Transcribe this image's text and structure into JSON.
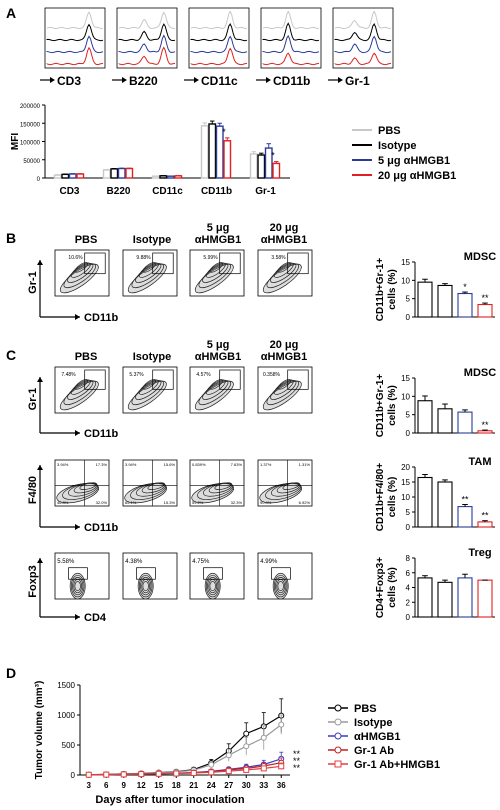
{
  "panel_labels": {
    "a": "A",
    "b": "B",
    "c": "C",
    "d": "D"
  },
  "colors": {
    "pbs": "#c8c8c8",
    "isotype": "#000000",
    "ab5": "#2a3b9a",
    "ab20": "#e02020"
  },
  "panel_a": {
    "histogram_markers": [
      "CD3",
      "B220",
      "CD11c",
      "CD11b",
      "Gr-1"
    ],
    "legend": [
      "PBS",
      "Isotype",
      "5 μg αHMGB1",
      "20 μg αHMGB1"
    ]
  },
  "panel_b": {
    "columns": [
      "PBS",
      "Isotype",
      "5 μg αHMGB1",
      "20 μg αHMGB1"
    ],
    "gate_values": [
      "10.6%",
      "9.88%",
      "5.99%",
      "3.58%"
    ],
    "y_axis": "Gr-1",
    "x_axis": "CD11b"
  },
  "panel_c": {
    "columns": [
      "PBS",
      "Isotype",
      "5 μg αHMGB1",
      "20 μg αHMGB1"
    ],
    "row1": {
      "gate_values": [
        "7.48%",
        "5.37%",
        "4.57%",
        "0.358%"
      ],
      "y_axis": "Gr-1",
      "x_axis": "CD11b"
    },
    "row2": {
      "quadrants": [
        [
          "3.94%",
          "17.3%",
          "46.8%",
          "32.0%"
        ],
        [
          "3.94%",
          "15.6%",
          "65.1%",
          "15.3%"
        ],
        [
          "0.839%",
          "7.63%",
          "59.2%",
          "32.3%"
        ],
        [
          "1.37%",
          "1.31%",
          "90.4%",
          "6.92%"
        ]
      ],
      "y_axis": "F4/80",
      "x_axis": "CD11b"
    },
    "row3": {
      "gate_values": [
        "5.58%",
        "4.38%",
        "4.75%",
        "4.99%"
      ],
      "y_axis": "Foxp3",
      "x_axis": "CD4"
    }
  },
  "chart_data": [
    {
      "type": "bar",
      "panel": "A",
      "categories": [
        "CD3",
        "B220",
        "CD11c",
        "CD11b",
        "Gr-1"
      ],
      "series": [
        {
          "name": "PBS",
          "values": [
            8000,
            22000,
            5000,
            143000,
            66000
          ]
        },
        {
          "name": "Isotype",
          "values": [
            10000,
            25000,
            6000,
            148000,
            63000
          ]
        },
        {
          "name": "5 μg αHMGB1",
          "values": [
            11000,
            26000,
            5000,
            142000,
            82000
          ]
        },
        {
          "name": "20 μg αHMGB1",
          "values": [
            11000,
            26000,
            6000,
            102000,
            40000
          ]
        }
      ],
      "errors": [
        [
          1000,
          1000,
          500,
          8000,
          6000
        ],
        [
          1000,
          1000,
          500,
          8000,
          5000
        ],
        [
          1000,
          1000,
          500,
          8000,
          12000
        ],
        [
          1000,
          1000,
          500,
          8000,
          5000
        ]
      ],
      "significance": [
        "",
        "",
        "",
        "*",
        "*"
      ],
      "ylabel": "MFI",
      "ylim": [
        0,
        200000
      ],
      "yticks": [
        "0",
        "50000",
        "100000",
        "150000",
        "200000"
      ]
    },
    {
      "type": "bar",
      "panel": "B",
      "title": "MDSC",
      "categories": [
        "PBS",
        "Isotype",
        "5 μg αHMGB1",
        "20 μg αHMGB1"
      ],
      "values": [
        9.5,
        8.6,
        6.4,
        3.4
      ],
      "errors": [
        0.8,
        0.5,
        0.4,
        0.4
      ],
      "significance": [
        "",
        "",
        "*",
        "**"
      ],
      "ylabel": "CD11b+Gr-1+ cells (%)",
      "ylim": [
        0,
        15
      ],
      "yticks": [
        "0",
        "5",
        "10",
        "15"
      ]
    },
    {
      "type": "bar",
      "panel": "C",
      "title": "MDSC",
      "categories": [
        "PBS",
        "Isotype",
        "5 μg αHMGB1",
        "20 μg αHMGB1"
      ],
      "values": [
        8.8,
        6.6,
        5.7,
        0.6
      ],
      "errors": [
        1.3,
        1.3,
        0.6,
        0.2
      ],
      "significance": [
        "",
        "",
        "",
        "**"
      ],
      "ylabel": "CD11b+Gr-1+ cells (%)",
      "ylim": [
        0,
        15
      ],
      "yticks": [
        "0",
        "5",
        "10",
        "15"
      ]
    },
    {
      "type": "bar",
      "panel": "C",
      "title": "TAM",
      "categories": [
        "PBS",
        "Isotype",
        "5 μg αHMGB1",
        "20 μg αHMGB1"
      ],
      "values": [
        16.5,
        15.0,
        6.8,
        1.7
      ],
      "errors": [
        1.0,
        0.7,
        0.7,
        0.4
      ],
      "significance": [
        "",
        "",
        "**",
        "**"
      ],
      "ylabel": "CD11b+F4/80+ cells (%)",
      "ylim": [
        0,
        20
      ],
      "yticks": [
        "0",
        "5",
        "10",
        "15",
        "20"
      ]
    },
    {
      "type": "bar",
      "panel": "C",
      "title": "Treg",
      "categories": [
        "PBS",
        "Isotype",
        "5 μg αHMGB1",
        "20 μg αHMGB1"
      ],
      "values": [
        5.3,
        4.7,
        5.3,
        5.0
      ],
      "errors": [
        0.3,
        0.3,
        0.5,
        0.0
      ],
      "significance": [
        "",
        "",
        "",
        ""
      ],
      "ylabel": "CD4+Foxp3+ cells (%)",
      "ylim": [
        0,
        8
      ],
      "yticks": [
        "0",
        "2",
        "4",
        "6",
        "8"
      ]
    },
    {
      "type": "line",
      "panel": "D",
      "x": [
        3,
        6,
        9,
        12,
        15,
        18,
        21,
        24,
        27,
        30,
        33,
        36
      ],
      "xticks": [
        "3",
        "6",
        "9",
        "12",
        "15",
        "18",
        "21",
        "24",
        "27",
        "30",
        "33",
        "36"
      ],
      "series": [
        {
          "name": "PBS",
          "values": [
            5,
            10,
            18,
            28,
            40,
            55,
            90,
            200,
            400,
            690,
            810,
            990
          ],
          "errors": [
            2,
            4,
            6,
            8,
            10,
            15,
            30,
            60,
            120,
            180,
            230,
            280
          ]
        },
        {
          "name": "Isotype",
          "values": [
            5,
            9,
            16,
            25,
            35,
            50,
            80,
            170,
            330,
            480,
            620,
            840
          ],
          "errors": [
            2,
            4,
            6,
            8,
            10,
            12,
            25,
            50,
            100,
            150,
            200,
            160
          ]
        },
        {
          "name": "αHMGB1",
          "values": [
            4,
            7,
            12,
            18,
            24,
            30,
            42,
            60,
            95,
            130,
            175,
            270
          ],
          "errors": [
            2,
            3,
            5,
            6,
            8,
            10,
            14,
            20,
            35,
            50,
            70,
            110
          ]
        },
        {
          "name": "Gr-1 Ab",
          "values": [
            4,
            7,
            11,
            16,
            22,
            28,
            38,
            55,
            85,
            110,
            150,
            205
          ],
          "errors": [
            2,
            3,
            4,
            5,
            6,
            8,
            12,
            18,
            30,
            40,
            55,
            80
          ]
        },
        {
          "name": "Gr-1 Ab+HMGB1",
          "values": [
            4,
            6,
            10,
            15,
            20,
            25,
            33,
            45,
            65,
            85,
            110,
            145
          ],
          "errors": [
            2,
            3,
            4,
            5,
            6,
            7,
            10,
            14,
            22,
            30,
            40,
            55
          ]
        }
      ],
      "significance": [
        "**",
        "**",
        "**"
      ],
      "xlabel": "Days after tumor inoculation",
      "ylabel": "Tumor volume (mm³)",
      "ylim": [
        0,
        1500
      ],
      "yticks": [
        "0",
        "500",
        "1000",
        "1500"
      ]
    }
  ]
}
